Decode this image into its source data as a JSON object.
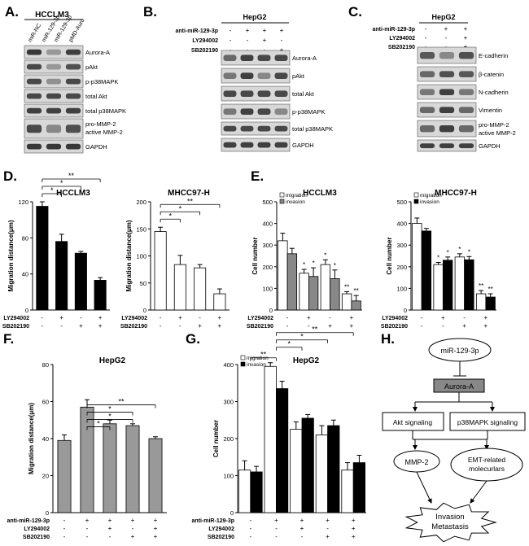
{
  "panels": {
    "A": {
      "letter": "A.",
      "title": "HCCLM3",
      "lanes": [
        "miR-NC",
        "miR-129-3p",
        "miR-129-3p + pMD-Auro"
      ],
      "bands": [
        "Aurora-A",
        "pAkt",
        "p-p38MAPK",
        "total Akt",
        "total p38MAPK",
        "pro-MMP-2",
        "active MMP-2",
        "GAPDH"
      ]
    },
    "B": {
      "letter": "B.",
      "title": "HepG2",
      "rows": [
        "anti-miR-129-3p",
        "LY294002",
        "SB202190"
      ],
      "grid": [
        [
          "-",
          "+",
          "+",
          "+"
        ],
        [
          "-",
          "-",
          "+",
          "-"
        ],
        [
          "-",
          "-",
          "-",
          "+"
        ]
      ],
      "bands": [
        "Aurora-A",
        "pAkt",
        "total Akt",
        "p-p38MAPK",
        "total p38MAPK",
        "GAPDH"
      ]
    },
    "C": {
      "letter": "C.",
      "title": "HepG2",
      "rows": [
        "anti-miR-129-3p",
        "LY294002",
        "SB202190"
      ],
      "grid": [
        [
          "-",
          "+",
          "+"
        ],
        [
          "-",
          "-",
          "+"
        ],
        [
          "-",
          "-",
          "+"
        ]
      ],
      "bands": [
        "E-cadherin",
        "β-catenin",
        "N-cadherin",
        "Vimentin",
        "pro-MMP-2",
        "active MMP-2",
        "GAPDH"
      ]
    },
    "D": {
      "letter": "D."
    },
    "E": {
      "letter": "E."
    },
    "F": {
      "letter": "F."
    },
    "G": {
      "letter": "G."
    },
    "H": {
      "letter": "H.",
      "nodes": {
        "top": "miR-129-3p",
        "aurora": "Aurora-A",
        "akt": "Akt signaling",
        "p38": "p38MAPK signaling",
        "mmp": "MMP-2",
        "emt1": "EMT-related",
        "emt2": "molecurlars",
        "inv1": "Invasion",
        "inv2": "Metastasis"
      }
    }
  },
  "chart_data": [
    {
      "id": "D1",
      "type": "bar",
      "title": "HCCLM3",
      "ylabel": "Migration distance(μm)",
      "ylim": [
        0,
        120
      ],
      "yticks": [
        0,
        40,
        80,
        120
      ],
      "series": [
        {
          "values": [
            115,
            76,
            63,
            33
          ],
          "errors": [
            5,
            8,
            2,
            3
          ]
        }
      ],
      "rows": [
        {
          "label": "LY294002",
          "values": [
            "-",
            "+",
            "-",
            "+"
          ]
        },
        {
          "label": "SB202190",
          "values": [
            "-",
            "-",
            "+",
            "+"
          ]
        }
      ],
      "marks": [
        "*",
        "*",
        "**"
      ],
      "color": "#000000"
    },
    {
      "id": "D2",
      "type": "bar",
      "title": "MHCC97-H",
      "ylabel": "Migration distance(μm)",
      "ylim": [
        0,
        200
      ],
      "yticks": [
        0,
        50,
        100,
        150,
        200
      ],
      "series": [
        {
          "values": [
            145,
            84,
            78,
            30
          ],
          "errors": [
            8,
            17,
            6,
            9
          ]
        }
      ],
      "rows": [
        {
          "label": "LY294002",
          "values": [
            "-",
            "+",
            "-",
            "+"
          ]
        },
        {
          "label": "SB202190",
          "values": [
            "-",
            "-",
            "+",
            "+"
          ]
        }
      ],
      "marks": [
        "*",
        "*",
        "**"
      ],
      "color": "#ffffff"
    },
    {
      "id": "E1",
      "type": "bar",
      "title": "HCCLM3",
      "ylabel": "Cell number",
      "ylim": [
        0,
        500
      ],
      "yticks": [
        0,
        100,
        200,
        300,
        400,
        500
      ],
      "legend": [
        "migration",
        "invasion"
      ],
      "series": [
        {
          "name": "migration",
          "values": [
            320,
            170,
            210,
            75
          ],
          "errors": [
            35,
            18,
            22,
            10
          ]
        },
        {
          "name": "invasion",
          "values": [
            260,
            155,
            145,
            42
          ],
          "errors": [
            25,
            40,
            40,
            25
          ]
        }
      ],
      "rows": [
        {
          "label": "LY294002",
          "values": [
            "-",
            "+",
            "-",
            "+"
          ]
        },
        {
          "label": "SB202190",
          "values": [
            "-",
            "-",
            "+",
            "+"
          ]
        }
      ],
      "marks": [
        "*",
        "*",
        "*",
        "*",
        "**",
        "**"
      ],
      "colors": [
        "#ffffff",
        "#888888"
      ]
    },
    {
      "id": "E2",
      "type": "bar",
      "title": "MHCC97-H",
      "ylabel": "Cell number",
      "ylim": [
        0,
        500
      ],
      "yticks": [
        0,
        100,
        200,
        300,
        400,
        500
      ],
      "legend": [
        "migration",
        "invasion"
      ],
      "series": [
        {
          "name": "migration",
          "values": [
            400,
            210,
            245,
            75
          ],
          "errors": [
            25,
            10,
            15,
            15
          ]
        },
        {
          "name": "invasion",
          "values": [
            365,
            230,
            232,
            60
          ],
          "errors": [
            12,
            15,
            15,
            15
          ]
        }
      ],
      "rows": [
        {
          "label": "LY294002",
          "values": [
            "-",
            "+",
            "-",
            "+"
          ]
        },
        {
          "label": "SB202190",
          "values": [
            "-",
            "-",
            "+",
            "+"
          ]
        }
      ],
      "marks": [
        "*",
        "*",
        "*",
        "*",
        "**",
        "**"
      ],
      "colors": [
        "#ffffff",
        "#000000"
      ]
    },
    {
      "id": "F",
      "type": "bar",
      "title": "HepG2",
      "ylabel": "Migration distance(μm)",
      "ylim": [
        0,
        80
      ],
      "yticks": [
        0,
        20,
        40,
        60,
        80
      ],
      "series": [
        {
          "values": [
            39,
            57,
            48,
            47,
            40
          ],
          "errors": [
            3,
            4,
            2,
            1,
            1
          ]
        }
      ],
      "rows": [
        {
          "label": "anti-miR-129-3p",
          "values": [
            "-",
            "+",
            "+",
            "+",
            "+"
          ]
        },
        {
          "label": "LY294002",
          "values": [
            "-",
            "-",
            "+",
            "-",
            "+"
          ]
        },
        {
          "label": "SB202190",
          "values": [
            "-",
            "-",
            "-",
            "+",
            "+"
          ]
        }
      ],
      "marks": [
        "*",
        "*",
        "*",
        "**"
      ],
      "color": "#999999"
    },
    {
      "id": "G",
      "type": "bar",
      "title": "HepG2",
      "ylabel": "Cell number",
      "ylim": [
        0,
        400
      ],
      "yticks": [
        0,
        100,
        200,
        300,
        400
      ],
      "legend": [
        "migration",
        "invasion"
      ],
      "series": [
        {
          "name": "migration",
          "values": [
            115,
            395,
            225,
            210,
            115
          ],
          "errors": [
            25,
            10,
            20,
            25,
            20
          ]
        },
        {
          "name": "invasion",
          "values": [
            110,
            335,
            255,
            235,
            135
          ],
          "errors": [
            15,
            20,
            10,
            15,
            20
          ]
        }
      ],
      "rows": [
        {
          "label": "anti-miR-129-3p",
          "values": [
            "-",
            "+",
            "+",
            "+",
            "+"
          ]
        },
        {
          "label": "LY294002",
          "values": [
            "-",
            "-",
            "+",
            "-",
            "+"
          ]
        },
        {
          "label": "SB202190",
          "values": [
            "-",
            "-",
            "-",
            "+",
            "+"
          ]
        }
      ],
      "marks": [
        "**",
        "*",
        "*",
        "**"
      ],
      "colors": [
        "#ffffff",
        "#000000"
      ]
    }
  ]
}
